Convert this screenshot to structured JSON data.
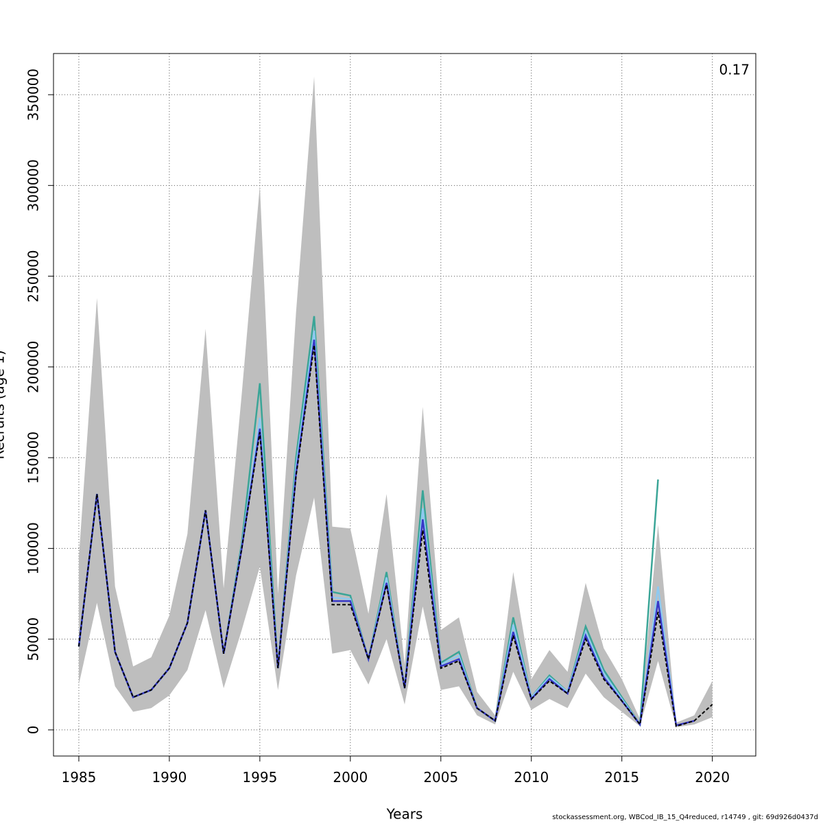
{
  "chart_data": {
    "type": "line",
    "xlabel": "Years",
    "ylabel": "Recruits (age 1)",
    "annotation": "0.17",
    "footer": "stockassessment.org, WBCod_IB_15_Q4reduced, r14749 , git: 69d926d0437d",
    "xlim": [
      1983.6,
      2022.4
    ],
    "ylim": [
      -14400,
      372700
    ],
    "xticks": [
      1985,
      1990,
      1995,
      2000,
      2005,
      2010,
      2015,
      2020
    ],
    "yticks": [
      0,
      50000,
      100000,
      150000,
      200000,
      250000,
      300000,
      350000
    ],
    "grid": true,
    "x": [
      1985,
      1986,
      1987,
      1988,
      1989,
      1990,
      1991,
      1992,
      1993,
      1994,
      1995,
      1996,
      1997,
      1998,
      1999,
      2000,
      2001,
      2002,
      2003,
      2004,
      2005,
      2006,
      2007,
      2008,
      2009,
      2010,
      2011,
      2012,
      2013,
      2014,
      2015,
      2016,
      2017,
      2018,
      2019,
      2020
    ],
    "band": {
      "color": "#bebebe",
      "upper": [
        95000,
        238000,
        79000,
        35000,
        40000,
        63000,
        108000,
        221000,
        78000,
        185000,
        300000,
        75000,
        230000,
        360000,
        112000,
        111000,
        64000,
        130000,
        36000,
        178000,
        55000,
        62000,
        21000,
        8000,
        87000,
        28000,
        44000,
        32000,
        81000,
        45000,
        28000,
        6000,
        113000,
        4000,
        8000,
        27000
      ],
      "lower": [
        25000,
        70000,
        24000,
        10000,
        12000,
        19000,
        33000,
        66000,
        23000,
        55000,
        90000,
        22000,
        85000,
        128000,
        42000,
        44000,
        25000,
        50000,
        14000,
        68000,
        22000,
        24000,
        8000,
        3000,
        32000,
        11000,
        17000,
        12000,
        31000,
        18000,
        10000,
        2000,
        38000,
        1500,
        3000,
        7000
      ]
    },
    "series": [
      {
        "color": "#3aa597",
        "values": [
          46000,
          130000,
          43000,
          18000,
          22000,
          34000,
          59000,
          121000,
          42000,
          103000,
          191000,
          34000,
          150000,
          228000,
          76000,
          74000,
          39000,
          87000,
          23000,
          132000,
          37000,
          43000,
          12000,
          5000,
          62000,
          18000,
          30000,
          21000,
          57000,
          33000,
          18000,
          3000,
          138000,
          null,
          null,
          null
        ]
      },
      {
        "color": "#8ec9f0",
        "values": [
          46000,
          130000,
          43000,
          18000,
          22000,
          34000,
          59000,
          121000,
          42000,
          101000,
          172000,
          34000,
          145000,
          220000,
          73000,
          72000,
          39000,
          84000,
          23000,
          122000,
          36000,
          41000,
          12000,
          5000,
          58000,
          18000,
          29000,
          21000,
          54000,
          31000,
          17000,
          3000,
          79000,
          3000,
          null,
          null
        ]
      },
      {
        "color": "#3838c8",
        "values": [
          46000,
          130000,
          43000,
          18000,
          22000,
          34000,
          59000,
          121000,
          42000,
          100000,
          166000,
          34000,
          141000,
          215000,
          71000,
          71000,
          39000,
          81000,
          23000,
          116000,
          35000,
          39000,
          12000,
          5000,
          54000,
          17000,
          28000,
          20000,
          52000,
          29000,
          16000,
          3000,
          71000,
          2500,
          5000,
          null
        ]
      },
      {
        "color": "#000000",
        "dashed": true,
        "values": [
          46000,
          130000,
          43000,
          18000,
          22000,
          34000,
          59000,
          121000,
          42000,
          100000,
          164000,
          34000,
          140000,
          212000,
          69000,
          69000,
          39000,
          80000,
          23000,
          110000,
          34000,
          38000,
          12000,
          5000,
          52000,
          17000,
          27000,
          20000,
          50000,
          28000,
          16000,
          3000,
          65000,
          2000,
          5000,
          14000
        ]
      }
    ]
  }
}
